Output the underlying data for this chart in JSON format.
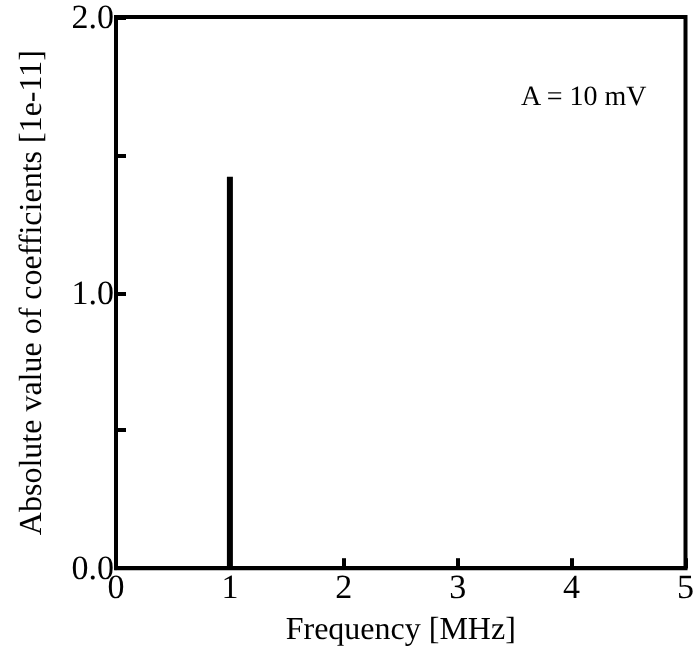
{
  "chart_data": {
    "type": "bar",
    "xlabel": "Frequency [MHz]",
    "ylabel": "Absolute value of coefficients [1e-11]",
    "x": [
      1
    ],
    "values": [
      1.42
    ],
    "color": "#000000",
    "xlim": [
      0,
      5
    ],
    "xticks": [
      0,
      1,
      2,
      3,
      4,
      5
    ],
    "ylim": [
      0,
      2
    ],
    "yticks": [
      {
        "value": 0,
        "label": "0.0"
      },
      {
        "value": 0.5,
        "label": null
      },
      {
        "value": 1,
        "label": "1.0"
      },
      {
        "value": 1.5,
        "label": null
      },
      {
        "value": 2,
        "label": "2.0"
      }
    ],
    "annotations": [
      "A = 10 mV"
    ],
    "grid": false
  }
}
